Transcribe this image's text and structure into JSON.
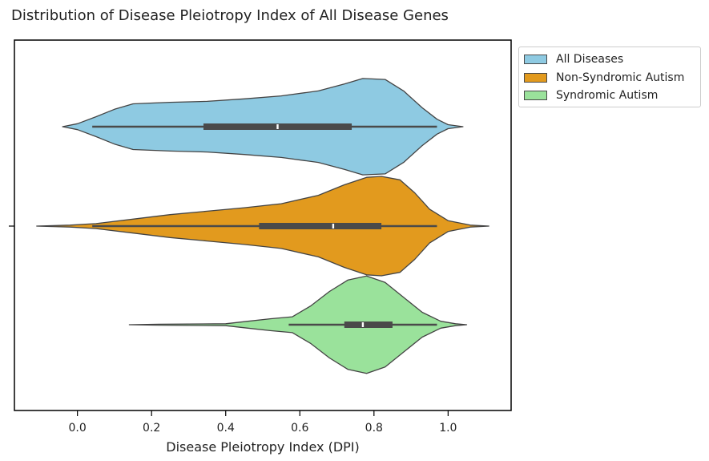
{
  "chart_data": {
    "type": "violin",
    "title": "Distribution of Disease Pleiotropy Index of All Disease Genes",
    "xlabel": "Disease Pleiotropy Index (DPI)",
    "ylabel": "",
    "xlim": [
      -0.17,
      1.17
    ],
    "xticks": [
      "0.0",
      "0.2",
      "0.4",
      "0.6",
      "0.8",
      "1.0"
    ],
    "orientation": "horizontal",
    "legend_position": "outside-upper-right",
    "series": [
      {
        "name": "All Diseases",
        "color": "#8ecae2",
        "whisker": [
          0.04,
          0.97
        ],
        "q1": 0.34,
        "median": 0.54,
        "q3": 0.74,
        "density": [
          [
            -0.04,
            0.0
          ],
          [
            0.0,
            0.06
          ],
          [
            0.05,
            0.2
          ],
          [
            0.1,
            0.35
          ],
          [
            0.15,
            0.46
          ],
          [
            0.25,
            0.49
          ],
          [
            0.35,
            0.51
          ],
          [
            0.45,
            0.56
          ],
          [
            0.55,
            0.62
          ],
          [
            0.65,
            0.72
          ],
          [
            0.72,
            0.86
          ],
          [
            0.77,
            0.97
          ],
          [
            0.83,
            0.95
          ],
          [
            0.88,
            0.72
          ],
          [
            0.93,
            0.38
          ],
          [
            0.97,
            0.15
          ],
          [
            1.0,
            0.04
          ],
          [
            1.04,
            0.0
          ]
        ]
      },
      {
        "name": "Non-Syndromic Autism",
        "color": "#e29a1e",
        "whisker": [
          0.04,
          0.97
        ],
        "q1": 0.49,
        "median": 0.69,
        "q3": 0.82,
        "density": [
          [
            -0.11,
            0.0
          ],
          [
            -0.02,
            0.02
          ],
          [
            0.05,
            0.05
          ],
          [
            0.15,
            0.14
          ],
          [
            0.25,
            0.23
          ],
          [
            0.35,
            0.3
          ],
          [
            0.45,
            0.37
          ],
          [
            0.55,
            0.45
          ],
          [
            0.65,
            0.62
          ],
          [
            0.72,
            0.83
          ],
          [
            0.78,
            0.98
          ],
          [
            0.82,
            1.0
          ],
          [
            0.87,
            0.93
          ],
          [
            0.91,
            0.67
          ],
          [
            0.95,
            0.34
          ],
          [
            1.0,
            0.11
          ],
          [
            1.06,
            0.02
          ],
          [
            1.11,
            0.0
          ]
        ]
      },
      {
        "name": "Syndromic Autism",
        "color": "#9ae29b",
        "whisker": [
          0.57,
          0.97
        ],
        "q1": 0.72,
        "median": 0.77,
        "q3": 0.85,
        "density": [
          [
            0.14,
            0.0
          ],
          [
            0.22,
            0.01
          ],
          [
            0.3,
            0.015
          ],
          [
            0.4,
            0.02
          ],
          [
            0.46,
            0.07
          ],
          [
            0.52,
            0.12
          ],
          [
            0.58,
            0.16
          ],
          [
            0.63,
            0.38
          ],
          [
            0.68,
            0.67
          ],
          [
            0.73,
            0.9
          ],
          [
            0.78,
            0.98
          ],
          [
            0.83,
            0.85
          ],
          [
            0.88,
            0.55
          ],
          [
            0.93,
            0.25
          ],
          [
            0.98,
            0.07
          ],
          [
            1.02,
            0.02
          ],
          [
            1.05,
            0.0
          ]
        ]
      }
    ]
  }
}
